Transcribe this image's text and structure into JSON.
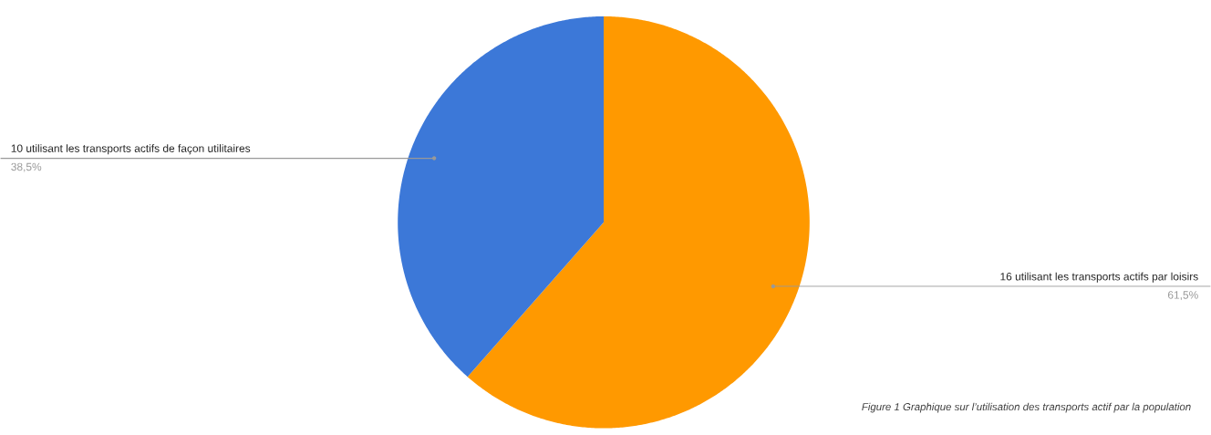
{
  "chart_data": {
    "type": "pie",
    "categories": [
      "16 utilisant les transports actifs par loisirs",
      "10 utilisant les transports actifs de façon utilitaires"
    ],
    "values": [
      61.5,
      38.5
    ],
    "colors": [
      "#ff9900",
      "#3c78d8"
    ],
    "value_labels": [
      "61,5%",
      "38,5%"
    ],
    "annotations": [
      "*Figure 1 Graphique sur l’utilisation des transports actif par la population*"
    ]
  }
}
